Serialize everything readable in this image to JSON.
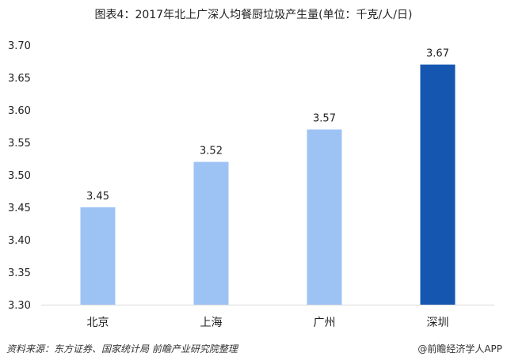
{
  "chart_data": {
    "type": "bar",
    "title": "图表4：2017年北上广深人均餐厨垃圾产生量(单位：千克/人/日)",
    "categories": [
      "北京",
      "上海",
      "广州",
      "深圳"
    ],
    "values": [
      3.45,
      3.52,
      3.57,
      3.67
    ],
    "data_labels": [
      "3.45",
      "3.52",
      "3.57",
      "3.67"
    ],
    "ylim": [
      3.3,
      3.7
    ],
    "yticks": [
      "3.30",
      "3.35",
      "3.40",
      "3.45",
      "3.50",
      "3.55",
      "3.60",
      "3.65",
      "3.70"
    ],
    "grid": false,
    "legend": "none",
    "colors": {
      "default": "#9DC3F5",
      "highlight": "#1557B0",
      "highlight_category": "深圳"
    }
  },
  "footer": {
    "source": "资料来源：东方证券、国家统计局 前瞻产业研究院整理",
    "credit": "@前瞻经济学人APP"
  }
}
